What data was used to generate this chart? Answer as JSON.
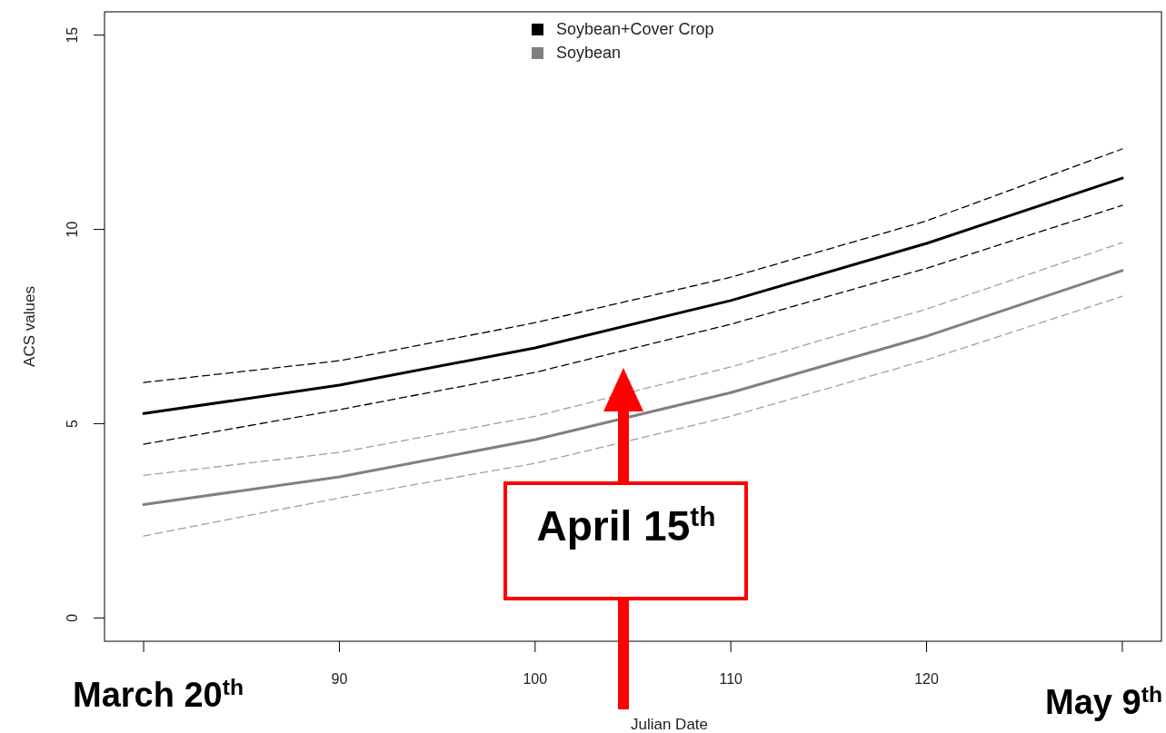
{
  "chart_data": {
    "type": "line",
    "xlabel": "Julian Date",
    "ylabel": "ACS values",
    "x": [
      80,
      90,
      100,
      110,
      120,
      130
    ],
    "series": [
      {
        "name": "Soybean+Cover Crop",
        "color": "#000000",
        "values": [
          5.26,
          5.99,
          6.95,
          8.17,
          9.64,
          11.32
        ]
      },
      {
        "name": "Soybean",
        "color": "#808080",
        "values": [
          2.92,
          3.63,
          4.59,
          5.8,
          7.25,
          8.94
        ]
      },
      {
        "color": "#000000",
        "line_style": "dashed",
        "values": [
          6.06,
          6.62,
          7.6,
          8.77,
          10.22,
          12.07
        ]
      },
      {
        "color": "#000000",
        "line_style": "dashed",
        "values": [
          4.47,
          5.36,
          6.32,
          7.56,
          9.0,
          10.62
        ]
      },
      {
        "color": "#a0a0a0",
        "line_style": "dashed",
        "values": [
          3.67,
          4.26,
          5.19,
          6.46,
          7.95,
          9.66
        ]
      },
      {
        "color": "#a0a0a0",
        "line_style": "dashed",
        "values": [
          2.11,
          3.09,
          3.98,
          5.19,
          6.64,
          8.28
        ]
      }
    ],
    "xlim": [
      78,
      132
    ],
    "ylim": [
      -0.6,
      15.6
    ],
    "xticks": [
      {
        "value": 80,
        "label": null
      },
      90,
      100,
      110,
      120,
      {
        "value": 130,
        "label": null
      }
    ],
    "yticks": [
      0,
      5,
      10,
      15
    ],
    "legend": "top",
    "grid": false,
    "marker": "none",
    "line_style": "solid",
    "annotations": [
      "March 20$^{th}$",
      "April 15$^{th}$",
      "May 9$^{th}$"
    ]
  }
}
